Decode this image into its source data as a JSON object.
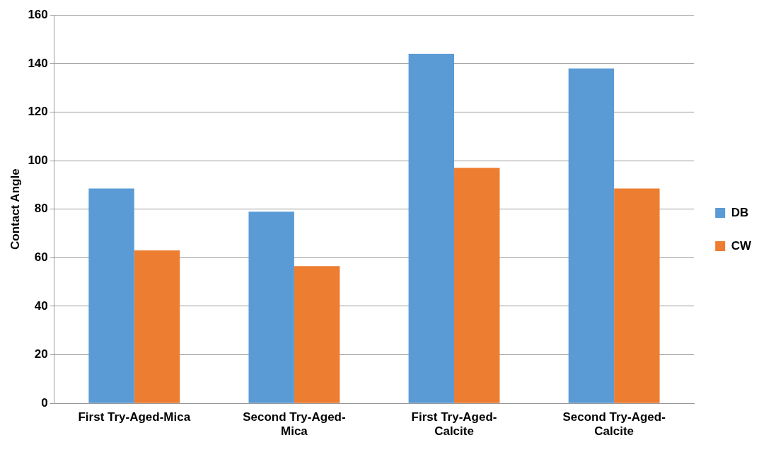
{
  "chart_data": {
    "type": "bar",
    "ylabel": "Contact Angle",
    "categories": [
      "First Try-Aged-Mica",
      "Second Try-Aged-Mica",
      "First Try-Aged-Calcite",
      "Second Try-Aged-Calcite"
    ],
    "series": [
      {
        "name": "DB",
        "color": "#5b9bd5",
        "values": [
          88.5,
          79,
          144,
          138
        ]
      },
      {
        "name": "CW",
        "color": "#ed7d31",
        "values": [
          63,
          56.5,
          97,
          88.5
        ]
      }
    ],
    "ylim": [
      0,
      160
    ],
    "yticks": [
      0,
      20,
      40,
      60,
      80,
      100,
      120,
      140,
      160
    ],
    "grid": "y",
    "legend": "right"
  }
}
